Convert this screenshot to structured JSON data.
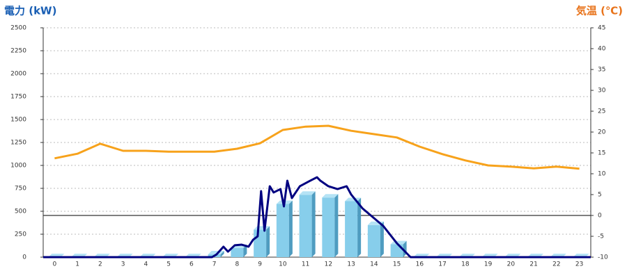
{
  "chart_data": {
    "type": "bar",
    "title": "電力 (kW)",
    "y2_title": "気温 (℃)",
    "categories": [
      "0",
      "1",
      "2",
      "3",
      "4",
      "5",
      "6",
      "7",
      "8",
      "9",
      "10",
      "11",
      "12",
      "13",
      "14",
      "15",
      "16",
      "17",
      "18",
      "19",
      "20",
      "21",
      "22",
      "23"
    ],
    "xlim": [
      -0.5,
      23.5
    ],
    "ylim": [
      0,
      2500
    ],
    "yticks": [
      0,
      250,
      500,
      750,
      1000,
      1250,
      1500,
      1750,
      2000,
      2250,
      2500
    ],
    "y2lim": [
      -10,
      45
    ],
    "y2ticks": [
      -10,
      -5,
      0,
      5,
      10,
      15,
      20,
      25,
      30,
      35,
      40,
      45
    ],
    "grid": true,
    "series": [
      {
        "type": "bar",
        "color": "#87ceeb",
        "values": [
          0,
          0,
          0,
          0,
          0,
          0,
          0,
          30,
          100,
          300,
          580,
          680,
          650,
          610,
          350,
          140,
          0,
          0,
          0,
          0,
          0,
          0,
          0,
          0
        ]
      },
      {
        "type": "line",
        "axis": "y2",
        "color": "#f7a21b",
        "values": [
          13.7,
          14.8,
          17.2,
          15.5,
          15.5,
          15.3,
          15.3,
          15.3,
          16,
          17.3,
          20.5,
          21.3,
          21.5,
          20.3,
          19.5,
          18.7,
          16.5,
          14.7,
          13.2,
          12,
          11.7,
          11.3,
          11.7,
          11.2
        ]
      },
      {
        "type": "line",
        "color": "#000080",
        "x": [
          -0.5,
          6.9,
          7.1,
          7.4,
          7.6,
          7.9,
          8.2,
          8.5,
          8.7,
          8.9,
          9.05,
          9.2,
          9.43,
          9.6,
          9.9,
          10.05,
          10.2,
          10.4,
          10.75,
          11.2,
          11.5,
          11.65,
          12.0,
          12.4,
          12.8,
          13.0,
          13.5,
          14.4,
          15.0,
          15.6,
          23.5
        ],
        "values": [
          0,
          0,
          30,
          114,
          60,
          130,
          136,
          114,
          190,
          227,
          720,
          288,
          773,
          705,
          742,
          553,
          833,
          644,
          773,
          833,
          871,
          833,
          773,
          742,
          773,
          682,
          530,
          341,
          152,
          0,
          0
        ]
      }
    ]
  }
}
